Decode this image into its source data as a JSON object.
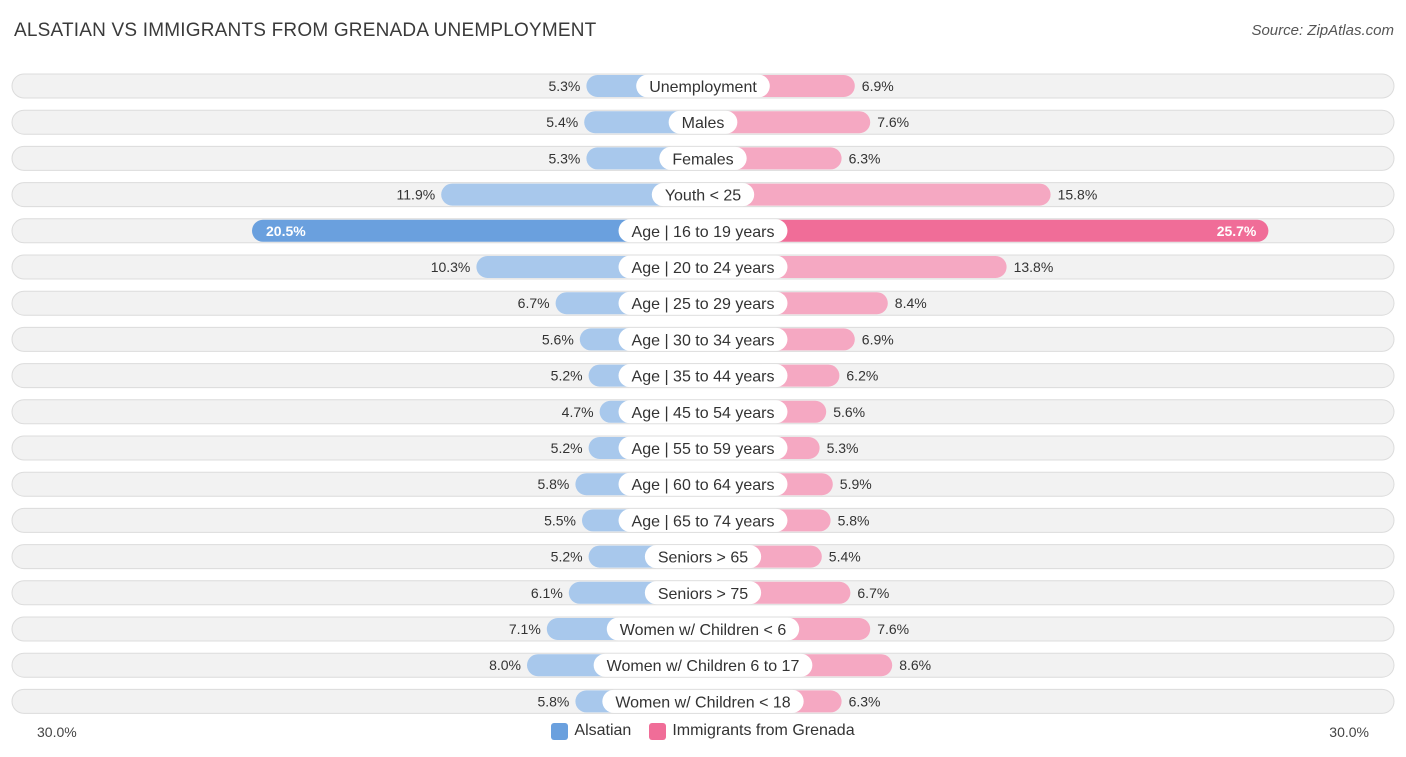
{
  "header": {
    "title": "ALSATIAN VS IMMIGRANTS FROM GRENADA UNEMPLOYMENT",
    "source": "Source: ZipAtlas.com"
  },
  "colors": {
    "left_light": "#a8c8ec",
    "left_strong": "#6aa0de",
    "right_light": "#f5a8c2",
    "right_strong": "#f06d98"
  },
  "chart_data": {
    "type": "bar",
    "orientation": "horizontal-diverging",
    "title": "ALSATIAN VS IMMIGRANTS FROM GRENADA UNEMPLOYMENT",
    "axis_max": 30.0,
    "axis_left_label": "30.0%",
    "axis_right_label": "30.0%",
    "categories": [
      "Unemployment",
      "Males",
      "Females",
      "Youth < 25",
      "Age | 16 to 19 years",
      "Age | 20 to 24 years",
      "Age | 25 to 29 years",
      "Age | 30 to 34 years",
      "Age | 35 to 44 years",
      "Age | 45 to 54 years",
      "Age | 55 to 59 years",
      "Age | 60 to 64 years",
      "Age | 65 to 74 years",
      "Seniors > 65",
      "Seniors > 75",
      "Women w/ Children < 6",
      "Women w/ Children 6 to 17",
      "Women w/ Children < 18"
    ],
    "series": [
      {
        "name": "Alsatian",
        "values": [
          5.3,
          5.4,
          5.3,
          11.9,
          20.5,
          10.3,
          6.7,
          5.6,
          5.2,
          4.7,
          5.2,
          5.8,
          5.5,
          5.2,
          6.1,
          7.1,
          8.0,
          5.8
        ],
        "labels": [
          "5.3%",
          "5.4%",
          "5.3%",
          "11.9%",
          "20.5%",
          "10.3%",
          "6.7%",
          "5.6%",
          "5.2%",
          "4.7%",
          "5.2%",
          "5.8%",
          "5.5%",
          "5.2%",
          "6.1%",
          "7.1%",
          "8.0%",
          "5.8%"
        ]
      },
      {
        "name": "Immigrants from Grenada",
        "values": [
          6.9,
          7.6,
          6.3,
          15.8,
          25.7,
          13.8,
          8.4,
          6.9,
          6.2,
          5.6,
          5.3,
          5.9,
          5.8,
          5.4,
          6.7,
          7.6,
          8.6,
          6.3
        ],
        "labels": [
          "6.9%",
          "7.6%",
          "6.3%",
          "15.8%",
          "25.7%",
          "13.8%",
          "8.4%",
          "6.9%",
          "6.2%",
          "5.6%",
          "5.3%",
          "5.9%",
          "5.8%",
          "5.4%",
          "6.7%",
          "7.6%",
          "8.6%",
          "6.3%"
        ]
      }
    ],
    "highlight_index": 4,
    "legend": [
      "Alsatian",
      "Immigrants from Grenada"
    ]
  }
}
